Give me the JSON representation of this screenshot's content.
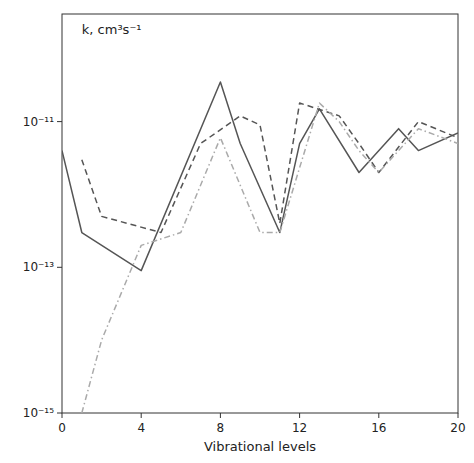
{
  "chart_data": {
    "type": "line",
    "title": "k, cm³s⁻¹",
    "xlabel": "Vibrational levels",
    "log": "y",
    "grid": false,
    "xlim": [
      0,
      20
    ],
    "ylim": [
      1e-15,
      3e-10
    ],
    "xticks": [
      0,
      4,
      8,
      12,
      16,
      20
    ],
    "yticks": [
      {
        "value": 1e-15,
        "label": "10⁻¹⁵"
      },
      {
        "value": 1e-13,
        "label": "10⁻¹³"
      },
      {
        "value": 1e-11,
        "label": "10⁻¹¹"
      }
    ],
    "series": [
      {
        "color": "#555555",
        "line_style": "solid",
        "x": [
          0,
          1,
          4,
          8,
          9,
          11,
          12,
          13,
          15,
          17,
          18,
          20
        ],
        "values": [
          4e-12,
          3e-13,
          9e-14,
          3.5e-11,
          5e-12,
          3e-13,
          5e-12,
          1.5e-11,
          2e-12,
          8e-12,
          4e-12,
          7e-12
        ]
      },
      {
        "color": "#555555",
        "line_style": "dashed",
        "x": [
          1,
          2,
          5,
          7,
          9,
          10,
          11,
          12,
          14,
          15,
          16,
          18,
          20
        ],
        "values": [
          3e-12,
          5e-13,
          3e-13,
          5e-12,
          1.2e-11,
          9e-12,
          4e-13,
          1.8e-11,
          1.2e-11,
          5e-12,
          2e-12,
          1e-11,
          6e-12
        ]
      },
      {
        "color": "#aaaaaa",
        "line_style": "dashdot",
        "x": [
          1,
          2,
          4,
          6,
          8,
          10,
          11,
          13,
          14,
          15,
          16,
          18,
          20
        ],
        "values": [
          1e-15,
          1e-14,
          2e-13,
          3e-13,
          6e-12,
          3e-13,
          3e-13,
          1.8e-11,
          1e-11,
          4e-12,
          2e-12,
          8e-12,
          5e-12
        ]
      }
    ]
  }
}
